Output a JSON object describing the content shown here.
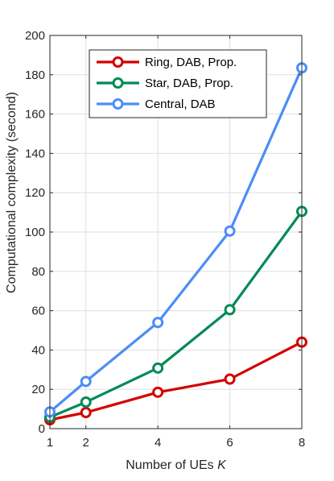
{
  "chart_data": {
    "type": "line",
    "title": "",
    "xlabel": "Number of UEs",
    "xlabel_var": "K",
    "ylabel": "Computational complexity (second)",
    "xlim": [
      1,
      8
    ],
    "ylim": [
      0,
      200
    ],
    "x_ticks": [
      1,
      2,
      4,
      6,
      8
    ],
    "y_ticks": [
      0,
      20,
      40,
      60,
      80,
      100,
      120,
      140,
      160,
      180,
      200
    ],
    "grid": true,
    "legend_position": "top-right",
    "series": [
      {
        "name": "Ring, DAB, Prop.",
        "color": "#d40000",
        "marker": "circle",
        "x": [
          1,
          2,
          4,
          6,
          8
        ],
        "y": [
          4.5,
          8.2,
          18.5,
          25.2,
          44
        ]
      },
      {
        "name": "Star, DAB, Prop.",
        "color": "#008a55",
        "marker": "circle",
        "x": [
          1,
          2,
          4,
          6,
          8
        ],
        "y": [
          5.8,
          13.5,
          30.8,
          60.5,
          110.5
        ]
      },
      {
        "name": "Central, DAB",
        "color": "#4c8df6",
        "marker": "circle",
        "x": [
          1,
          2,
          4,
          6,
          8
        ],
        "y": [
          8.5,
          24,
          54,
          100.5,
          183.5
        ]
      }
    ]
  }
}
